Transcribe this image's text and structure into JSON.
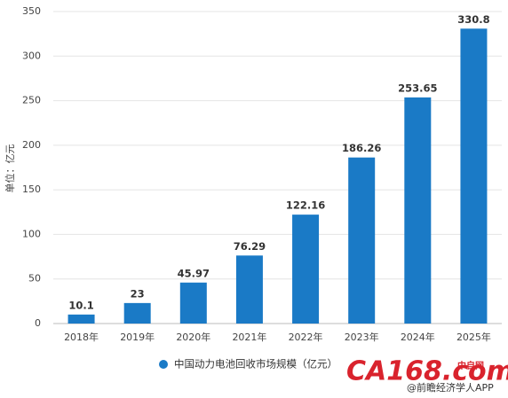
{
  "chart_data": {
    "type": "bar",
    "y_label": "单位：亿元",
    "categories": [
      "2018年",
      "2019年",
      "2020年",
      "2021年",
      "2022年",
      "2023年",
      "2024年",
      "2025年"
    ],
    "series": [
      {
        "name": "中国动力电池回收市场规模（亿元）",
        "color": "#1a7ac6",
        "values": [
          10.1,
          23,
          45.97,
          76.29,
          122.16,
          186.26,
          253.65,
          330.8
        ]
      }
    ],
    "ylim": [
      0,
      350
    ],
    "yticks": [
      0,
      50,
      100,
      150,
      200,
      250,
      300,
      350
    ],
    "grid": true,
    "legend": "bottom",
    "annotations": [
      "CA168.com",
      "中自网",
      "@前瞻经济学人APP"
    ]
  }
}
